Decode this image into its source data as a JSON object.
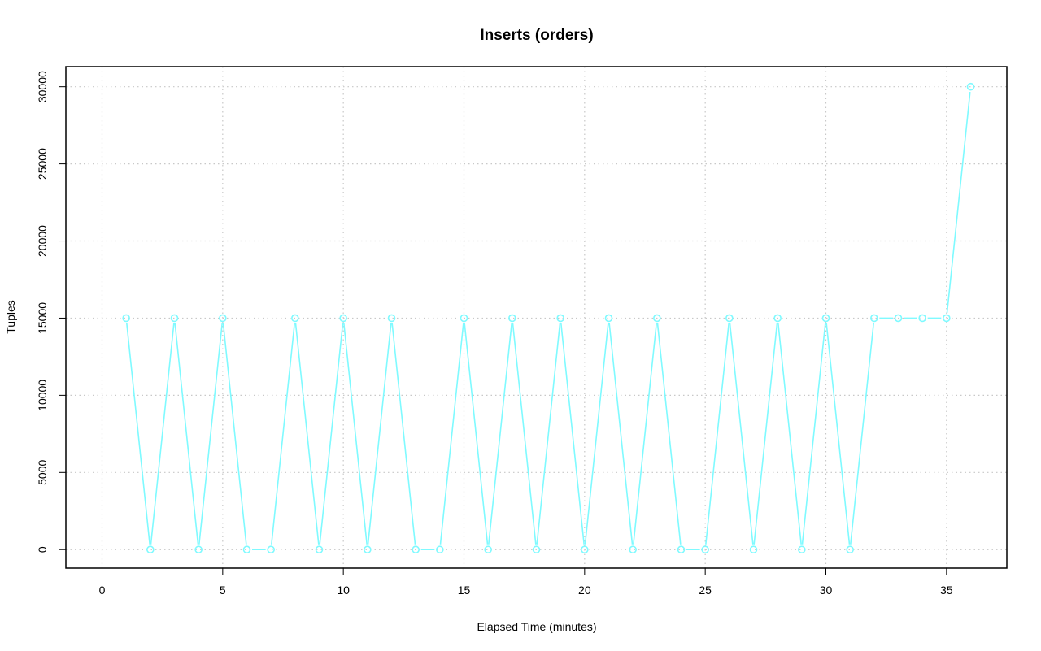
{
  "chart_data": {
    "type": "line",
    "title": "Inserts (orders)",
    "xlabel": "Elapsed Time (minutes)",
    "ylabel": "Tuples",
    "xlim": [
      -1.5,
      37.5
    ],
    "ylim": [
      -1200,
      31300
    ],
    "x_ticks": [
      0,
      5,
      10,
      15,
      20,
      25,
      30,
      35
    ],
    "y_ticks": [
      0,
      5000,
      10000,
      15000,
      20000,
      25000,
      30000
    ],
    "x_tick_labels": [
      "0",
      "5",
      "10",
      "15",
      "20",
      "25",
      "30",
      "35"
    ],
    "y_tick_labels": [
      "0",
      "5000",
      "10000",
      "15000",
      "20000",
      "25000",
      "30000"
    ],
    "grid": true,
    "series": [
      {
        "color": "#7ffaff",
        "marker": "circle-open",
        "x": [
          1,
          2,
          3,
          4,
          5,
          6,
          7,
          8,
          9,
          10,
          11,
          12,
          13,
          14,
          15,
          16,
          17,
          18,
          19,
          20,
          21,
          22,
          23,
          24,
          25,
          26,
          27,
          28,
          29,
          30,
          31,
          32,
          33,
          34,
          35,
          36
        ],
        "y": [
          15000,
          0,
          15000,
          0,
          15000,
          0,
          0,
          15000,
          0,
          15000,
          0,
          15000,
          0,
          0,
          15000,
          0,
          15000,
          0,
          15000,
          0,
          15000,
          0,
          15000,
          0,
          0,
          15000,
          0,
          15000,
          0,
          15000,
          0,
          15000,
          15000,
          15000,
          15000,
          30000
        ]
      }
    ]
  }
}
